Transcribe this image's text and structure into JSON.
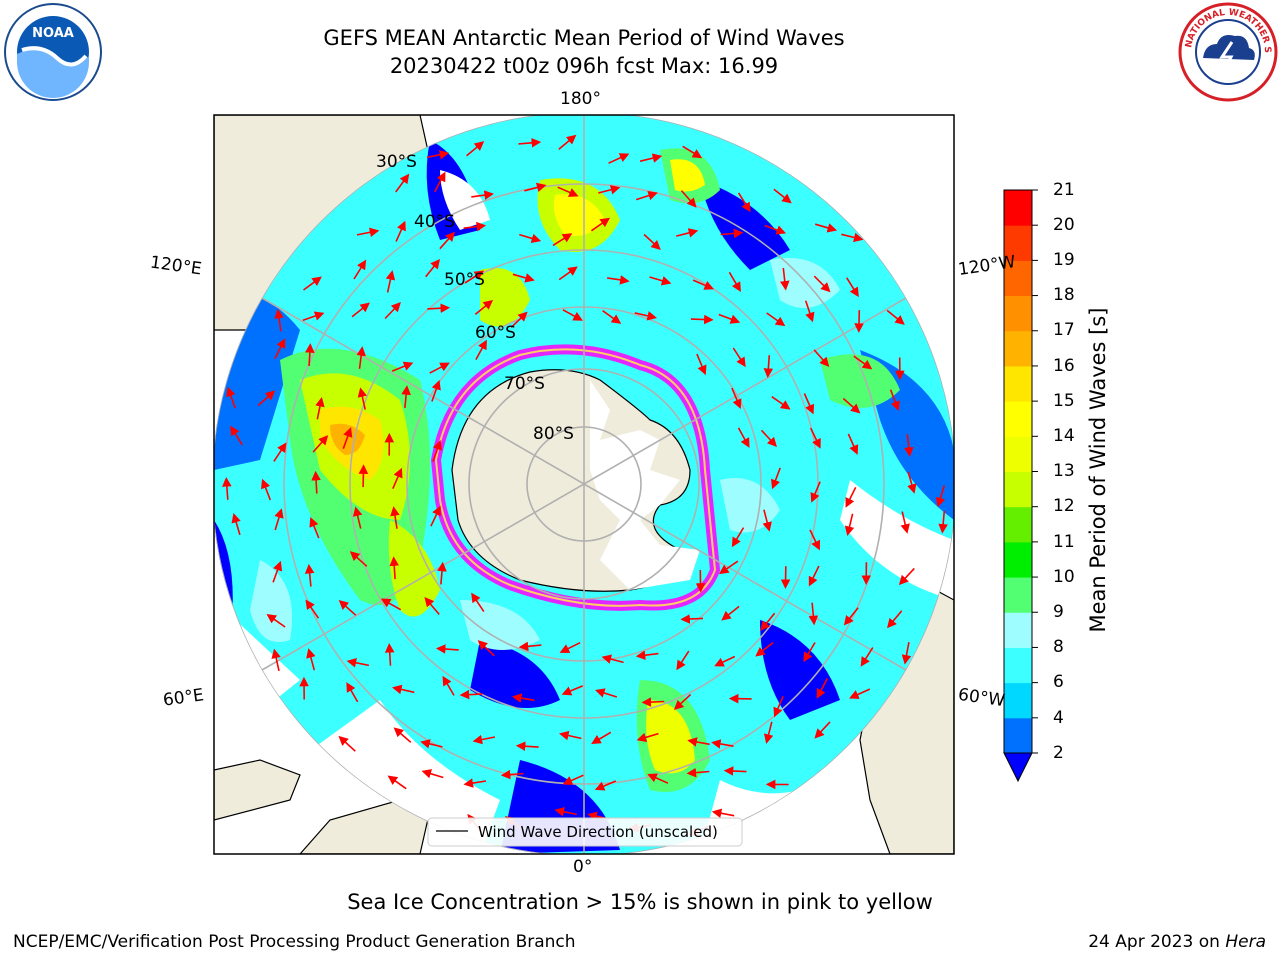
{
  "title": {
    "line1": "GEFS MEAN Antarctic Mean Period of Wind Waves",
    "line2": "20230422 t00z 096h fcst   Max: 16.99"
  },
  "logos": {
    "left": "NOAA",
    "right": "NATIONAL WEATHER SERVICE"
  },
  "map": {
    "projection": "south-polar-stereographic",
    "longitude_labels": {
      "top": "180°",
      "bottom": "0°",
      "left_upper": "120°E",
      "left_lower": "60°E",
      "right_upper": "120°W",
      "right_lower": "60°W"
    },
    "latitude_labels": [
      "30°S",
      "40°S",
      "50°S",
      "60°S",
      "70°S",
      "80°S"
    ],
    "legend": "Wind Wave Direction (unscaled)",
    "arrow_color": "#ff0000",
    "land_color": "#efecdc",
    "ice_colors": [
      "#ff66cc",
      "#ff00ff",
      "#ffcc66"
    ]
  },
  "colorbar": {
    "label": "Mean Period of Wind Waves [s]",
    "ticks": [
      "2",
      "4",
      "6",
      "8",
      "9",
      "10",
      "11",
      "12",
      "13",
      "14",
      "15",
      "16",
      "17",
      "18",
      "19",
      "20",
      "21"
    ],
    "colors": [
      "#0070ff",
      "#00d8ff",
      "#3cffff",
      "#9efeff",
      "#52ff72",
      "#00ee00",
      "#64ee00",
      "#c8ff00",
      "#eeff00",
      "#ffff00",
      "#ffe600",
      "#ffb300",
      "#ff9000",
      "#ff6600",
      "#ff3a00",
      "#ff0000"
    ],
    "under_color": "#0000ff"
  },
  "sea_ice_note": "Sea Ice Concentration > 15% is shown in pink to yellow",
  "footer": {
    "left": "NCEP/EMC/Verification Post Processing Product Generation Branch",
    "right_date": "24 Apr 2023 on",
    "right_machine": "Hera"
  }
}
